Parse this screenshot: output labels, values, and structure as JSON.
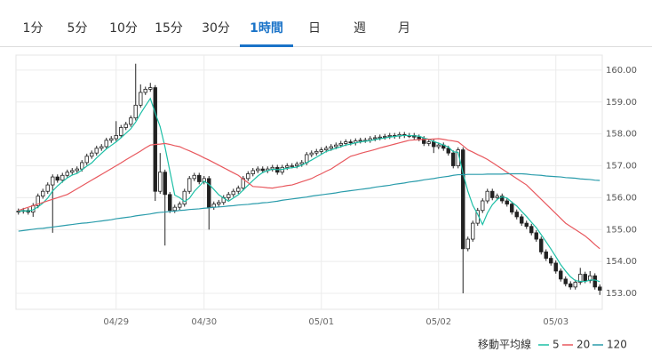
{
  "tabs": {
    "items": [
      "1分",
      "5分",
      "10分",
      "15分",
      "30分",
      "1時間",
      "日",
      "週",
      "月"
    ],
    "selected": 5
  },
  "chart_data": {
    "type": "candlestick",
    "categories": [
      null,
      null,
      null,
      null,
      null,
      null,
      null,
      null,
      null,
      null,
      null,
      null,
      null,
      null,
      null,
      null,
      null,
      null,
      null,
      null,
      "04/29",
      null,
      null,
      null,
      null,
      null,
      null,
      null,
      null,
      null,
      null,
      null,
      null,
      null,
      null,
      null,
      null,
      null,
      "04/30",
      null,
      null,
      null,
      null,
      null,
      null,
      null,
      null,
      null,
      null,
      null,
      null,
      null,
      null,
      null,
      null,
      null,
      null,
      null,
      null,
      null,
      null,
      null,
      "05/01",
      null,
      null,
      null,
      null,
      null,
      null,
      null,
      null,
      null,
      null,
      null,
      null,
      null,
      null,
      null,
      null,
      null,
      null,
      null,
      null,
      null,
      null,
      null,
      "05/02",
      null,
      null,
      null,
      null,
      null,
      null,
      null,
      null,
      null,
      null,
      null,
      null,
      null,
      null,
      null,
      null,
      null,
      null,
      null,
      null,
      null,
      null,
      null,
      "05/03",
      null,
      null,
      null,
      null,
      null,
      null,
      null,
      null,
      null
    ],
    "open": [
      155.55,
      155.58,
      155.6,
      155.55,
      155.75,
      156.05,
      156.2,
      156.4,
      156.65,
      156.55,
      156.7,
      156.8,
      156.85,
      156.9,
      157.1,
      157.3,
      157.4,
      157.55,
      157.6,
      157.8,
      157.85,
      157.95,
      158.2,
      158.3,
      158.5,
      158.9,
      159.3,
      159.4,
      159.45,
      156.2,
      156.8,
      156.1,
      155.6,
      155.7,
      155.8,
      156.2,
      156.6,
      156.7,
      156.5,
      156.6,
      155.7,
      155.8,
      155.85,
      156.0,
      156.1,
      156.2,
      156.3,
      156.6,
      156.75,
      156.85,
      156.9,
      156.85,
      156.9,
      156.95,
      156.8,
      156.95,
      157.0,
      157.0,
      157.05,
      157.1,
      157.35,
      157.4,
      157.45,
      157.5,
      157.55,
      157.6,
      157.65,
      157.7,
      157.75,
      157.72,
      157.78,
      157.8,
      157.8,
      157.85,
      157.88,
      157.9,
      157.92,
      157.95,
      157.93,
      157.98,
      157.95,
      157.95,
      157.9,
      157.85,
      157.7,
      157.75,
      157.6,
      157.65,
      157.55,
      157.4,
      157.0,
      157.5,
      154.4,
      154.7,
      155.2,
      155.6,
      155.9,
      156.2,
      156.0,
      156.05,
      155.9,
      155.8,
      155.55,
      155.4,
      155.2,
      155.1,
      154.9,
      154.7,
      154.3,
      154.1,
      153.95,
      153.7,
      153.45,
      153.3,
      153.2,
      153.35,
      153.6,
      153.4,
      153.55,
      153.2
    ],
    "high": [
      155.66,
      155.68,
      155.68,
      155.83,
      156.13,
      156.28,
      156.48,
      156.73,
      156.73,
      156.78,
      156.88,
      156.93,
      156.98,
      157.18,
      157.38,
      157.48,
      157.63,
      157.68,
      157.88,
      157.93,
      158.4,
      158.28,
      158.38,
      158.58,
      160.2,
      159.55,
      159.48,
      159.6,
      159.53,
      157.4,
      156.88,
      156.18,
      155.78,
      155.88,
      156.28,
      156.68,
      156.78,
      156.78,
      156.68,
      156.68,
      155.88,
      155.93,
      156.08,
      156.18,
      156.28,
      156.38,
      156.68,
      156.83,
      156.93,
      156.98,
      156.98,
      156.98,
      157.03,
      157.03,
      157.03,
      157.08,
      157.08,
      157.13,
      157.18,
      157.43,
      157.48,
      157.53,
      157.58,
      157.63,
      157.68,
      157.73,
      157.78,
      157.83,
      157.83,
      157.86,
      157.88,
      157.88,
      157.93,
      157.96,
      157.98,
      158.0,
      158.03,
      158.03,
      158.06,
      158.06,
      158.03,
      158.03,
      157.98,
      157.93,
      157.83,
      157.83,
      157.73,
      157.73,
      157.63,
      157.48,
      157.58,
      157.58,
      154.78,
      155.28,
      155.68,
      155.98,
      156.28,
      156.28,
      156.13,
      156.13,
      155.98,
      155.88,
      155.63,
      155.48,
      155.28,
      155.18,
      154.98,
      154.78,
      154.38,
      154.18,
      154.03,
      153.78,
      153.53,
      153.38,
      153.43,
      153.8,
      153.68,
      153.7,
      153.63,
      153.28
    ],
    "low": [
      155.47,
      155.5,
      155.47,
      155.4,
      155.67,
      155.97,
      156.12,
      154.9,
      156.47,
      156.47,
      156.62,
      156.72,
      156.77,
      156.82,
      157.02,
      157.22,
      157.32,
      157.47,
      157.52,
      157.72,
      157.77,
      157.87,
      158.12,
      158.22,
      158.42,
      158.82,
      159.22,
      159.32,
      155.9,
      156.12,
      154.5,
      155.52,
      155.52,
      155.62,
      155.72,
      156.12,
      156.52,
      156.42,
      156.42,
      155.0,
      155.62,
      155.72,
      155.77,
      155.92,
      156.02,
      156.12,
      156.22,
      156.52,
      156.67,
      156.77,
      156.77,
      156.77,
      156.82,
      156.72,
      156.72,
      156.87,
      156.92,
      156.92,
      156.97,
      157.02,
      157.27,
      157.32,
      157.37,
      157.42,
      157.47,
      157.52,
      157.57,
      157.62,
      157.64,
      157.64,
      157.7,
      157.72,
      157.72,
      157.77,
      157.8,
      157.82,
      157.84,
      157.85,
      157.85,
      157.87,
      157.87,
      157.82,
      157.77,
      157.62,
      157.62,
      157.4,
      157.52,
      157.47,
      157.32,
      156.92,
      156.92,
      153.0,
      154.32,
      154.62,
      155.12,
      155.52,
      155.82,
      155.92,
      155.92,
      155.82,
      155.72,
      155.47,
      155.32,
      155.12,
      155.02,
      154.82,
      154.62,
      154.22,
      154.02,
      153.87,
      153.62,
      153.37,
      153.22,
      153.12,
      153.12,
      153.27,
      153.32,
      153.32,
      153.12,
      152.95
    ],
    "close": [
      155.58,
      155.6,
      155.55,
      155.75,
      156.05,
      156.2,
      156.4,
      156.65,
      156.55,
      156.7,
      156.8,
      156.85,
      156.9,
      157.1,
      157.3,
      157.4,
      157.55,
      157.6,
      157.8,
      157.85,
      157.95,
      158.2,
      158.3,
      158.5,
      158.9,
      159.3,
      159.4,
      159.45,
      156.2,
      156.8,
      156.1,
      155.6,
      155.7,
      155.8,
      156.2,
      156.6,
      156.7,
      156.5,
      156.6,
      155.7,
      155.8,
      155.85,
      156.0,
      156.1,
      156.2,
      156.3,
      156.6,
      156.75,
      156.85,
      156.9,
      156.85,
      156.9,
      156.95,
      156.8,
      156.95,
      157.0,
      157.0,
      157.05,
      157.1,
      157.35,
      157.4,
      157.45,
      157.5,
      157.55,
      157.6,
      157.65,
      157.7,
      157.75,
      157.72,
      157.78,
      157.8,
      157.8,
      157.85,
      157.88,
      157.9,
      157.92,
      157.95,
      157.93,
      157.98,
      157.95,
      157.95,
      157.9,
      157.85,
      157.7,
      157.75,
      157.6,
      157.65,
      157.55,
      157.4,
      157.0,
      157.5,
      154.4,
      154.7,
      155.2,
      155.6,
      155.9,
      156.2,
      156.0,
      156.05,
      155.9,
      155.8,
      155.55,
      155.4,
      155.2,
      155.1,
      154.9,
      154.7,
      154.3,
      154.1,
      153.95,
      153.7,
      153.45,
      153.3,
      153.2,
      153.35,
      153.6,
      153.4,
      153.55,
      153.2,
      153.1
    ],
    "series": [
      {
        "name": "5",
        "color": "#1cbfa6",
        "values": [
          155.58,
          155.59,
          155.58,
          155.62,
          155.71,
          155.83,
          155.99,
          156.21,
          156.37,
          156.5,
          156.62,
          156.71,
          156.76,
          156.87,
          156.99,
          157.09,
          157.25,
          157.39,
          157.53,
          157.64,
          157.75,
          157.88,
          158.02,
          158.16,
          158.37,
          158.64,
          158.88,
          159.11,
          158.65,
          158.23,
          157.59,
          156.83,
          156.08,
          156.0,
          155.88,
          155.98,
          156.2,
          156.36,
          156.52,
          156.42,
          156.26,
          156.09,
          155.99,
          155.89,
          155.99,
          156.09,
          156.24,
          156.39,
          156.54,
          156.68,
          156.79,
          156.85,
          156.89,
          156.88,
          156.89,
          156.92,
          156.94,
          156.96,
          157.02,
          157.1,
          157.18,
          157.27,
          157.36,
          157.45,
          157.5,
          157.55,
          157.6,
          157.65,
          157.68,
          157.72,
          157.75,
          157.77,
          157.79,
          157.82,
          157.85,
          157.87,
          157.9,
          157.92,
          157.94,
          157.95,
          157.95,
          157.94,
          157.93,
          157.87,
          157.83,
          157.76,
          157.71,
          157.65,
          157.59,
          157.44,
          157.42,
          156.77,
          156.2,
          155.76,
          155.48,
          155.16,
          155.52,
          155.78,
          155.95,
          156.03,
          155.99,
          155.86,
          155.74,
          155.57,
          155.41,
          155.23,
          155.06,
          154.84,
          154.62,
          154.39,
          154.15,
          153.9,
          153.7,
          153.52,
          153.4,
          153.38,
          153.37,
          153.42,
          153.42,
          153.37
        ]
      },
      {
        "name": "20",
        "color": "#e8585e",
        "values": [
          155.6,
          155.65,
          155.7,
          155.75,
          155.8,
          155.85,
          155.9,
          155.95,
          156.0,
          156.05,
          156.1,
          156.19,
          156.28,
          156.37,
          156.46,
          156.55,
          156.64,
          156.73,
          156.82,
          156.91,
          157.0,
          157.09,
          157.19,
          157.28,
          157.37,
          157.46,
          157.56,
          157.65,
          157.67,
          157.68,
          157.7,
          157.67,
          157.63,
          157.6,
          157.53,
          157.47,
          157.4,
          157.33,
          157.25,
          157.18,
          157.1,
          157.02,
          156.94,
          156.86,
          156.78,
          156.7,
          156.58,
          156.47,
          156.35,
          156.34,
          156.33,
          156.31,
          156.3,
          156.33,
          156.35,
          156.38,
          156.4,
          156.45,
          156.5,
          156.55,
          156.6,
          156.68,
          156.75,
          156.83,
          156.9,
          157.0,
          157.1,
          157.2,
          157.3,
          157.34,
          157.39,
          157.43,
          157.47,
          157.51,
          157.56,
          157.6,
          157.64,
          157.68,
          157.72,
          157.76,
          157.8,
          157.81,
          157.82,
          157.83,
          157.83,
          157.84,
          157.85,
          157.83,
          157.8,
          157.78,
          157.75,
          157.63,
          157.5,
          157.43,
          157.35,
          157.28,
          157.2,
          157.1,
          157.0,
          156.9,
          156.8,
          156.7,
          156.6,
          156.5,
          156.4,
          156.25,
          156.1,
          155.95,
          155.8,
          155.65,
          155.5,
          155.35,
          155.2,
          155.1,
          155.0,
          154.9,
          154.8,
          154.67,
          154.53,
          154.4
        ]
      },
      {
        "name": "120",
        "color": "#2a9cab",
        "values": [
          154.95,
          154.97,
          154.99,
          155.01,
          155.03,
          155.04,
          155.06,
          155.08,
          155.1,
          155.12,
          155.14,
          155.16,
          155.18,
          155.2,
          155.21,
          155.23,
          155.25,
          155.27,
          155.29,
          155.31,
          155.34,
          155.36,
          155.38,
          155.4,
          155.43,
          155.45,
          155.47,
          155.49,
          155.52,
          155.54,
          155.55,
          155.57,
          155.58,
          155.6,
          155.61,
          155.63,
          155.64,
          155.65,
          155.67,
          155.68,
          155.7,
          155.71,
          155.72,
          155.74,
          155.75,
          155.77,
          155.78,
          155.79,
          155.81,
          155.82,
          155.84,
          155.85,
          155.87,
          155.89,
          155.92,
          155.94,
          155.96,
          155.98,
          156.0,
          156.02,
          156.05,
          156.07,
          156.09,
          156.11,
          156.13,
          156.15,
          156.18,
          156.2,
          156.22,
          156.24,
          156.26,
          156.28,
          156.3,
          156.33,
          156.35,
          156.37,
          156.39,
          156.42,
          156.44,
          156.46,
          156.49,
          156.51,
          156.53,
          156.56,
          156.58,
          156.6,
          156.63,
          156.65,
          156.67,
          156.7,
          156.72,
          156.72,
          156.73,
          156.73,
          156.73,
          156.73,
          156.74,
          156.74,
          156.74,
          156.74,
          156.75,
          156.75,
          156.75,
          156.75,
          156.74,
          156.72,
          156.71,
          156.7,
          156.68,
          156.67,
          156.66,
          156.65,
          156.63,
          156.62,
          156.61,
          156.59,
          156.58,
          156.57,
          156.55,
          156.54
        ]
      }
    ],
    "legend_title": "移動平均線",
    "ylim": [
      152.5,
      160.47
    ],
    "yticks": [
      {
        "value": 153,
        "label": "153.00"
      },
      {
        "value": 154,
        "label": "154.00"
      },
      {
        "value": 155,
        "label": "155.00"
      },
      {
        "value": 156,
        "label": "156.00"
      },
      {
        "value": 157,
        "label": "157.00"
      },
      {
        "value": 158,
        "label": "158.00"
      },
      {
        "value": 159,
        "label": "159.00"
      },
      {
        "value": 160,
        "label": "160.00"
      }
    ],
    "grid": true
  }
}
